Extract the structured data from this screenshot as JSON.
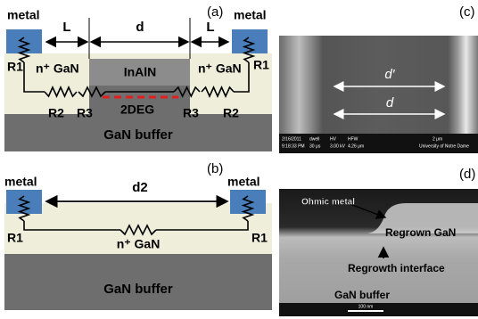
{
  "panels": {
    "a": {
      "label": "(a)",
      "metal": [
        "metal",
        "metal"
      ],
      "dimensions": [
        "L",
        "d",
        "L"
      ],
      "resistors": [
        "R1",
        "R2",
        "R3",
        "R3",
        "R2",
        "R1"
      ],
      "layers": [
        "n⁺ GaN",
        "InAlN",
        "n⁺ GaN",
        "2DEG",
        "GaN buffer"
      ]
    },
    "b": {
      "label": "(b)",
      "metal": [
        "metal",
        "metal"
      ],
      "dimension": "d2",
      "resistors": [
        "R1",
        "R1"
      ],
      "layers": [
        "n⁺ GaN",
        "GaN buffer"
      ]
    },
    "c": {
      "label": "(c)",
      "dimensions": [
        "d′",
        "d"
      ],
      "info_bar": {
        "headers": [
          "2/16/2011",
          "dwell",
          "HV",
          "HFW",
          "2 μm"
        ],
        "values": [
          "9:18:33 PM",
          "30 μs",
          "3.00 kV",
          "4.26 μm",
          "University of Notre Dame"
        ]
      }
    },
    "d": {
      "label": "(d)",
      "annotations": [
        "Ohmic metal",
        "Regrown GaN",
        "Regrowth interface",
        "GaN buffer"
      ],
      "scale_bar": "100 nm"
    }
  }
}
